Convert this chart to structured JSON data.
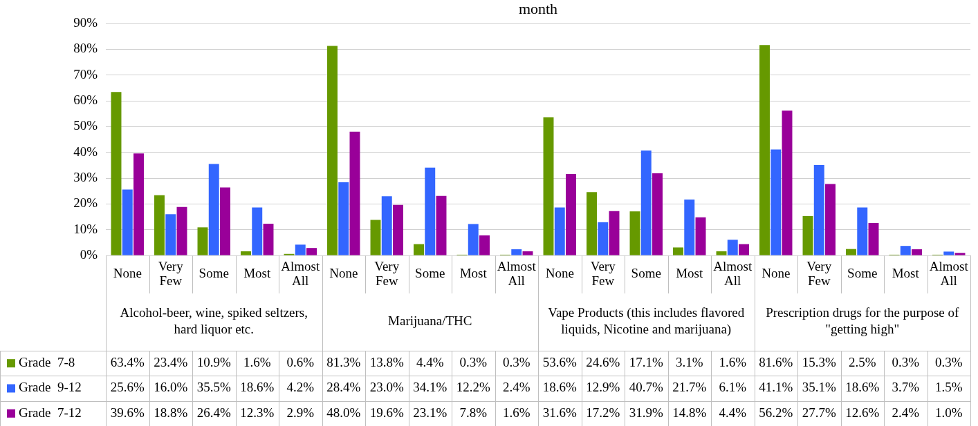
{
  "chart_data": {
    "type": "bar",
    "title": "month",
    "categories": [
      "None",
      "Very Few",
      "Some",
      "Most",
      "Almost All",
      "None",
      "Very Few",
      "Some",
      "Most",
      "Almost All",
      "None",
      "Very Few",
      "Some",
      "Most",
      "Almost All",
      "None",
      "Very Few",
      "Some",
      "Most",
      "Almost All"
    ],
    "annotations": [
      "Alcohol-beer, wine, spiked seltzers, hard liquor etc.",
      "Marijuana/THC",
      "Vape Products (this includes flavored liquids, Nicotine and marijuana)",
      "Prescription drugs for the purpose of \"getting high\""
    ],
    "series": [
      {
        "name": "Grade  7-8",
        "color": "#669900",
        "values": [
          63.4,
          23.4,
          10.9,
          1.6,
          0.6,
          81.3,
          13.8,
          4.4,
          0.3,
          0.3,
          53.6,
          24.6,
          17.1,
          3.1,
          1.6,
          81.6,
          15.3,
          2.5,
          0.3,
          0.3
        ],
        "value_labels": [
          "63.4%",
          "23.4%",
          "10.9%",
          "1.6%",
          "0.6%",
          "81.3%",
          "13.8%",
          "4.4%",
          "0.3%",
          "0.3%",
          "53.6%",
          "24.6%",
          "17.1%",
          "3.1%",
          "1.6%",
          "81.6%",
          "15.3%",
          "2.5%",
          "0.3%",
          "0.3%"
        ]
      },
      {
        "name": "Grade  9-12",
        "color": "#3366ff",
        "values": [
          25.6,
          16.0,
          35.5,
          18.6,
          4.2,
          28.4,
          23.0,
          34.1,
          12.2,
          2.4,
          18.6,
          12.9,
          40.7,
          21.7,
          6.1,
          41.1,
          35.1,
          18.6,
          3.7,
          1.5
        ],
        "value_labels": [
          "25.6%",
          "16.0%",
          "35.5%",
          "18.6%",
          "4.2%",
          "28.4%",
          "23.0%",
          "34.1%",
          "12.2%",
          "2.4%",
          "18.6%",
          "12.9%",
          "40.7%",
          "21.7%",
          "6.1%",
          "41.1%",
          "35.1%",
          "18.6%",
          "3.7%",
          "1.5%"
        ]
      },
      {
        "name": "Grade  7-12",
        "color": "#990099",
        "values": [
          39.6,
          18.8,
          26.4,
          12.3,
          2.9,
          48.0,
          19.6,
          23.1,
          7.8,
          1.6,
          31.6,
          17.2,
          31.9,
          14.8,
          4.4,
          56.2,
          27.7,
          12.6,
          2.4,
          1.0
        ],
        "value_labels": [
          "39.6%",
          "18.8%",
          "26.4%",
          "12.3%",
          "2.9%",
          "48.0%",
          "19.6%",
          "23.1%",
          "7.8%",
          "1.6%",
          "31.6%",
          "17.2%",
          "31.9%",
          "14.8%",
          "4.4%",
          "56.2%",
          "27.7%",
          "12.6%",
          "2.4%",
          "1.0%"
        ]
      }
    ],
    "ylim": [
      0,
      90
    ],
    "yticks": [
      {
        "value": 0,
        "label": "0%"
      },
      {
        "value": 10,
        "label": "10%"
      },
      {
        "value": 20,
        "label": "20%"
      },
      {
        "value": 30,
        "label": "30%"
      },
      {
        "value": 40,
        "label": "40%"
      },
      {
        "value": 50,
        "label": "50%"
      },
      {
        "value": 60,
        "label": "60%"
      },
      {
        "value": 70,
        "label": "70%"
      },
      {
        "value": 80,
        "label": "80%"
      },
      {
        "value": 90,
        "label": "90%"
      }
    ],
    "grid": "y",
    "legend": "bottom"
  }
}
